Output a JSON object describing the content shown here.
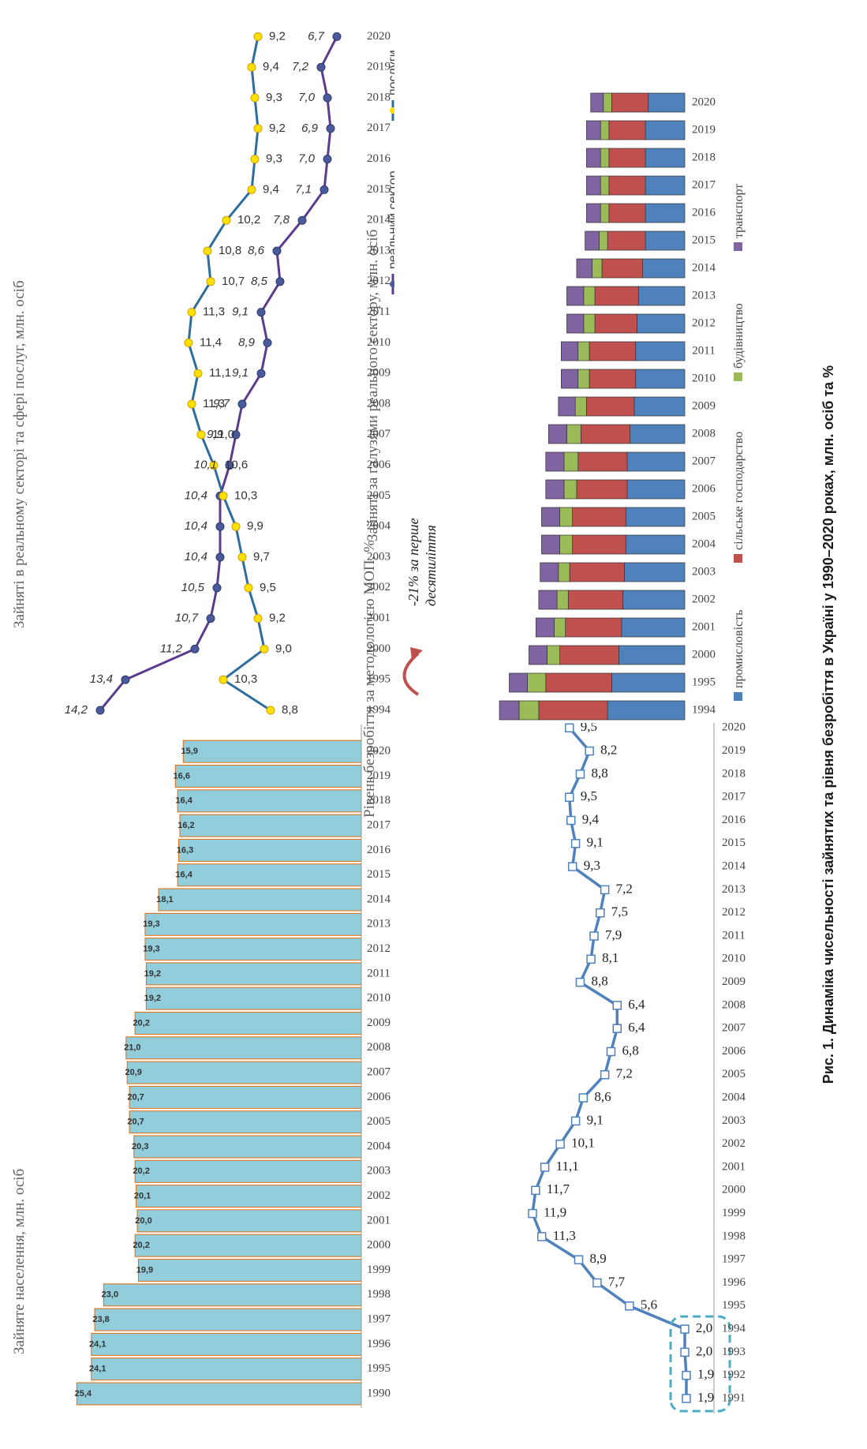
{
  "caption": "Рис. 1. Динаміка чисельності зайнятих та рівня безробіття в Україні у 1990–2020 роках, млн. осіб та %",
  "chart_data": [
    {
      "type": "bar",
      "title": "Зайняте населення, млн. осіб",
      "categories": [
        "1990",
        "1995",
        "1996",
        "1997",
        "1998",
        "1999",
        "2000",
        "2001",
        "2002",
        "2003",
        "2004",
        "2005",
        "2006",
        "2007",
        "2008",
        "2009",
        "2010",
        "2011",
        "2012",
        "2013",
        "2014",
        "2015",
        "2016",
        "2017",
        "2018",
        "2019",
        "2020"
      ],
      "values": [
        25.4,
        24.1,
        24.1,
        23.8,
        23.0,
        19.9,
        20.2,
        20.0,
        20.1,
        20.2,
        20.3,
        20.7,
        20.7,
        20.9,
        21.0,
        20.2,
        19.2,
        19.2,
        19.3,
        19.3,
        18.1,
        16.4,
        16.3,
        16.2,
        16.4,
        16.6,
        15.9
      ],
      "labels": [
        "25,4",
        "24,1",
        "24,1",
        "23,8",
        "23,0",
        "19,9",
        "20,2",
        "20,0",
        "20,1",
        "20,2",
        "20,3",
        "20,7",
        "20,7",
        "20,9",
        "21,0",
        "20,2",
        "19,2",
        "19,2",
        "19,3",
        "19,3",
        "18,1",
        "16,4",
        "16,3",
        "16,2",
        "16,4",
        "16,6",
        "15,9"
      ],
      "colors": {
        "bar": "#92cddc",
        "border": "#e26b0a"
      }
    },
    {
      "type": "line",
      "title": "Зайняті в реальному секторі та сфері послуг, млн. осіб",
      "categories": [
        "1994",
        "1995",
        "2000",
        "2001",
        "2002",
        "2003",
        "2004",
        "2005",
        "2006",
        "2007",
        "2008",
        "2009",
        "2010",
        "2011",
        "2012",
        "2013",
        "2014",
        "2015",
        "2016",
        "2017",
        "2018",
        "2019",
        "2020"
      ],
      "series": [
        {
          "name": "реальний сектор",
          "values": [
            14.2,
            13.4,
            11.2,
            10.7,
            10.5,
            10.4,
            10.4,
            10.4,
            10.1,
            9.9,
            9.7,
            9.1,
            8.9,
            9.1,
            8.5,
            8.6,
            7.8,
            7.1,
            7.0,
            6.9,
            7.0,
            7.2,
            6.7
          ],
          "labels": [
            "14,2",
            "13,4",
            "11,2",
            "10,7",
            "10,5",
            "10,4",
            "10,4",
            "10,4",
            "10,1",
            "9,9",
            "9,7",
            "9,1",
            "8,9",
            "9,1",
            "8,5",
            "8,6",
            "7,8",
            "7,1",
            "7,0",
            "6,9",
            "7,0",
            "7,2",
            "6,7"
          ]
        },
        {
          "name": "послуги",
          "values": [
            8.8,
            10.3,
            9.0,
            9.2,
            9.5,
            9.7,
            9.9,
            10.3,
            10.6,
            11.0,
            11.3,
            11.1,
            11.4,
            11.3,
            10.7,
            10.8,
            10.2,
            9.4,
            9.3,
            9.2,
            9.3,
            9.4,
            9.2
          ],
          "labels": [
            "8,8",
            "10,3",
            "9,0",
            "9,2",
            "9,5",
            "9,7",
            "9,9",
            "10,3",
            "10,6",
            "11,0",
            "11,3",
            "11,1",
            "11,4",
            "11,3",
            "10,7",
            "10,8",
            "10,2",
            "9,4",
            "9,3",
            "9,2",
            "9,3",
            "9,4",
            "9,2"
          ]
        }
      ],
      "colors": {
        "real": "#5b3c8e",
        "real_marker": "#4a5a9a",
        "services": "#2e6c9e",
        "services_marker": "#ffe100"
      }
    },
    {
      "type": "line",
      "title": "Рівень безробіття за методологією МОП, %",
      "categories": [
        "1991",
        "1992",
        "1993",
        "1994",
        "1995",
        "1996",
        "1997",
        "1998",
        "1999",
        "2000",
        "2001",
        "2002",
        "2003",
        "2004",
        "2005",
        "2006",
        "2007",
        "2008",
        "2009",
        "2010",
        "2011",
        "2012",
        "2013",
        "2014",
        "2015",
        "2016",
        "2017",
        "2018",
        "2019",
        "2020"
      ],
      "values": [
        1.9,
        1.9,
        2.0,
        2.0,
        5.6,
        7.7,
        8.9,
        11.3,
        11.9,
        11.7,
        11.1,
        10.1,
        9.1,
        8.6,
        7.2,
        6.8,
        6.4,
        6.4,
        8.8,
        8.1,
        7.9,
        7.5,
        7.2,
        9.3,
        9.1,
        9.4,
        9.5,
        8.8,
        8.2,
        9.5
      ],
      "labels": [
        "1,9",
        "1,9",
        "2,0",
        "2,0",
        "5,6",
        "7,7",
        "8,9",
        "11,3",
        "11,9",
        "11,7",
        "11,1",
        "10,1",
        "9,1",
        "8,6",
        "7,2",
        "6,8",
        "6,4",
        "6,4",
        "8,8",
        "8,1",
        "7,9",
        "7,5",
        "7,2",
        "9,3",
        "9,1",
        "9,4",
        "9,5",
        "8,8",
        "8,2",
        "9,5"
      ],
      "colors": {
        "line": "#4f81bd",
        "highlight": "#4bacc6"
      }
    },
    {
      "type": "bar",
      "stacked": true,
      "title": "Зайняті за галузями реального сектору, млн. осіб",
      "annotation": "-21% за перше десятиліття",
      "categories": [
        "1994",
        "1995",
        "2000",
        "2001",
        "2002",
        "2003",
        "2004",
        "2005",
        "2006",
        "2007",
        "2008",
        "2009",
        "2010",
        "2011",
        "2012",
        "2013",
        "2014",
        "2015",
        "2016",
        "2017",
        "2018",
        "2019",
        "2020"
      ],
      "series": [
        {
          "name": "промисловість",
          "values": [
            5.5,
            5.2,
            4.7,
            4.5,
            4.4,
            4.3,
            4.2,
            4.2,
            4.1,
            4.1,
            3.9,
            3.6,
            3.5,
            3.5,
            3.4,
            3.3,
            3.0,
            2.8,
            2.8,
            2.8,
            2.8,
            2.8,
            2.6
          ]
        },
        {
          "name": "сільське господарство",
          "values": [
            4.9,
            4.7,
            4.2,
            4.0,
            3.9,
            3.9,
            3.8,
            3.8,
            3.6,
            3.5,
            3.5,
            3.4,
            3.3,
            3.3,
            3.0,
            3.1,
            2.9,
            2.7,
            2.6,
            2.6,
            2.6,
            2.6,
            2.6
          ]
        },
        {
          "name": "будівництво",
          "values": [
            1.4,
            1.3,
            0.9,
            0.8,
            0.8,
            0.8,
            0.9,
            0.9,
            0.9,
            1.0,
            1.0,
            0.8,
            0.8,
            0.8,
            0.8,
            0.8,
            0.7,
            0.6,
            0.6,
            0.6,
            0.6,
            0.6,
            0.6
          ]
        },
        {
          "name": "транспорт",
          "values": [
            1.4,
            1.3,
            1.3,
            1.3,
            1.3,
            1.3,
            1.3,
            1.3,
            1.3,
            1.3,
            1.3,
            1.2,
            1.2,
            1.2,
            1.2,
            1.2,
            1.1,
            1.0,
            1.0,
            1.0,
            1.0,
            1.0,
            0.9
          ]
        }
      ],
      "colors": [
        "#4f81bd",
        "#c0504d",
        "#9bbb59",
        "#8064a2"
      ]
    }
  ]
}
